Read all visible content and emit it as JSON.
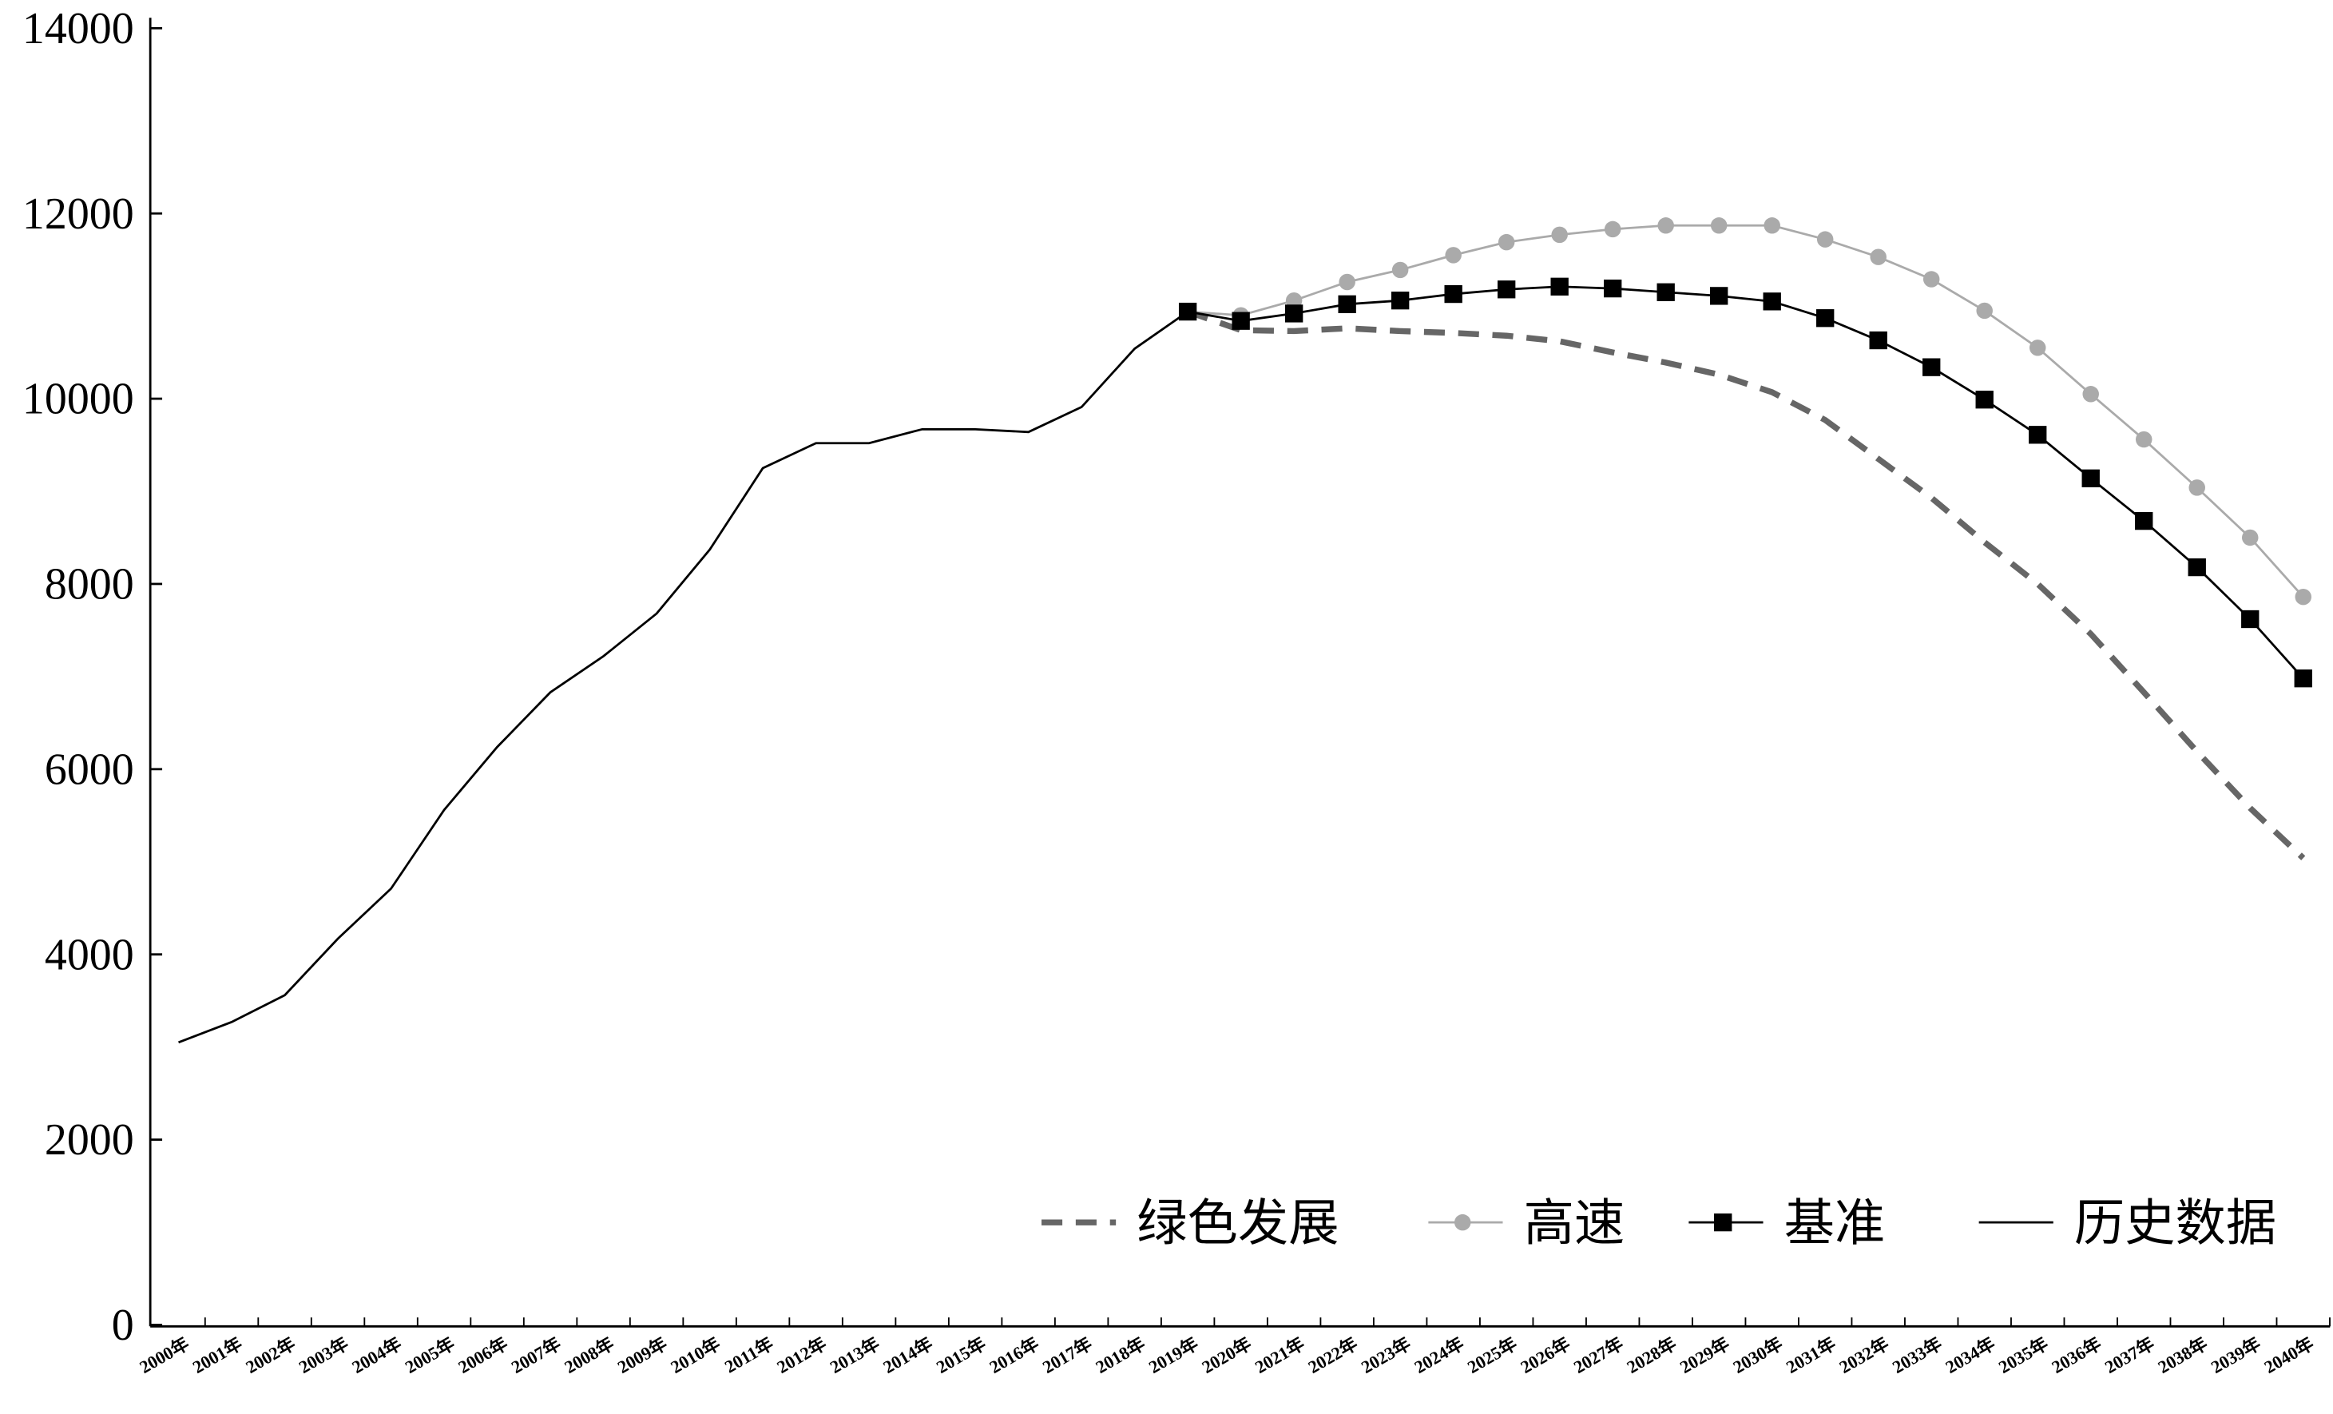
{
  "chart_data": {
    "type": "line",
    "categories": [
      "2000年",
      "2001年",
      "2002年",
      "2003年",
      "2004年",
      "2005年",
      "2006年",
      "2007年",
      "2008年",
      "2009年",
      "2010年",
      "2011年",
      "2012年",
      "2013年",
      "2014年",
      "2015年",
      "2016年",
      "2017年",
      "2018年",
      "2019年",
      "2020年",
      "2021年",
      "2022年",
      "2023年",
      "2024年",
      "2025年",
      "2026年",
      "2027年",
      "2028年",
      "2029年",
      "2030年",
      "2031年",
      "2032年",
      "2033年",
      "2034年",
      "2035年",
      "2036年",
      "2037年",
      "2038年",
      "2039年",
      "2040年"
    ],
    "series": [
      {
        "name": "绿色发展",
        "color": "#666666",
        "dash": true,
        "marker": "none",
        "values": [
          null,
          null,
          null,
          null,
          null,
          null,
          null,
          null,
          null,
          null,
          null,
          null,
          null,
          null,
          null,
          null,
          null,
          null,
          null,
          10940,
          10740,
          10730,
          10760,
          10730,
          10710,
          10680,
          10620,
          10500,
          10390,
          10260,
          10070,
          9770,
          9350,
          8930,
          8450,
          8000,
          7460,
          6830,
          6190,
          5580,
          5040
        ]
      },
      {
        "name": "高速",
        "color": "#aaaaaa",
        "marker": "circle",
        "values": [
          null,
          null,
          null,
          null,
          null,
          null,
          null,
          null,
          null,
          null,
          null,
          null,
          null,
          null,
          null,
          null,
          null,
          null,
          null,
          10940,
          10900,
          11060,
          11260,
          11390,
          11550,
          11690,
          11770,
          11830,
          11870,
          11870,
          11870,
          11720,
          11530,
          11290,
          10950,
          10550,
          10050,
          9560,
          9040,
          8500,
          7860
        ]
      },
      {
        "name": "基准",
        "color": "#000000",
        "marker": "square",
        "values": [
          null,
          null,
          null,
          null,
          null,
          null,
          null,
          null,
          null,
          null,
          null,
          null,
          null,
          null,
          null,
          null,
          null,
          null,
          null,
          10940,
          10840,
          10920,
          11020,
          11060,
          11130,
          11180,
          11210,
          11190,
          11150,
          11110,
          11050,
          10870,
          10630,
          10340,
          9990,
          9610,
          9140,
          8680,
          8180,
          7620,
          6980
        ]
      },
      {
        "name": "历史数据",
        "color": "#000000",
        "marker": "none",
        "values": [
          3050,
          3270,
          3560,
          4170,
          4710,
          5560,
          6240,
          6830,
          7220,
          7680,
          8370,
          9250,
          9520,
          9520,
          9670,
          9670,
          9640,
          9910,
          10540,
          10940,
          null,
          null,
          null,
          null,
          null,
          null,
          null,
          null,
          null,
          null,
          null,
          null,
          null,
          null,
          null,
          null,
          null,
          null,
          null,
          null,
          null
        ]
      }
    ],
    "ylim": [
      0,
      14000
    ],
    "yticks": [
      0,
      2000,
      4000,
      6000,
      8000,
      10000,
      12000,
      14000
    ],
    "legend": "lower-right"
  }
}
